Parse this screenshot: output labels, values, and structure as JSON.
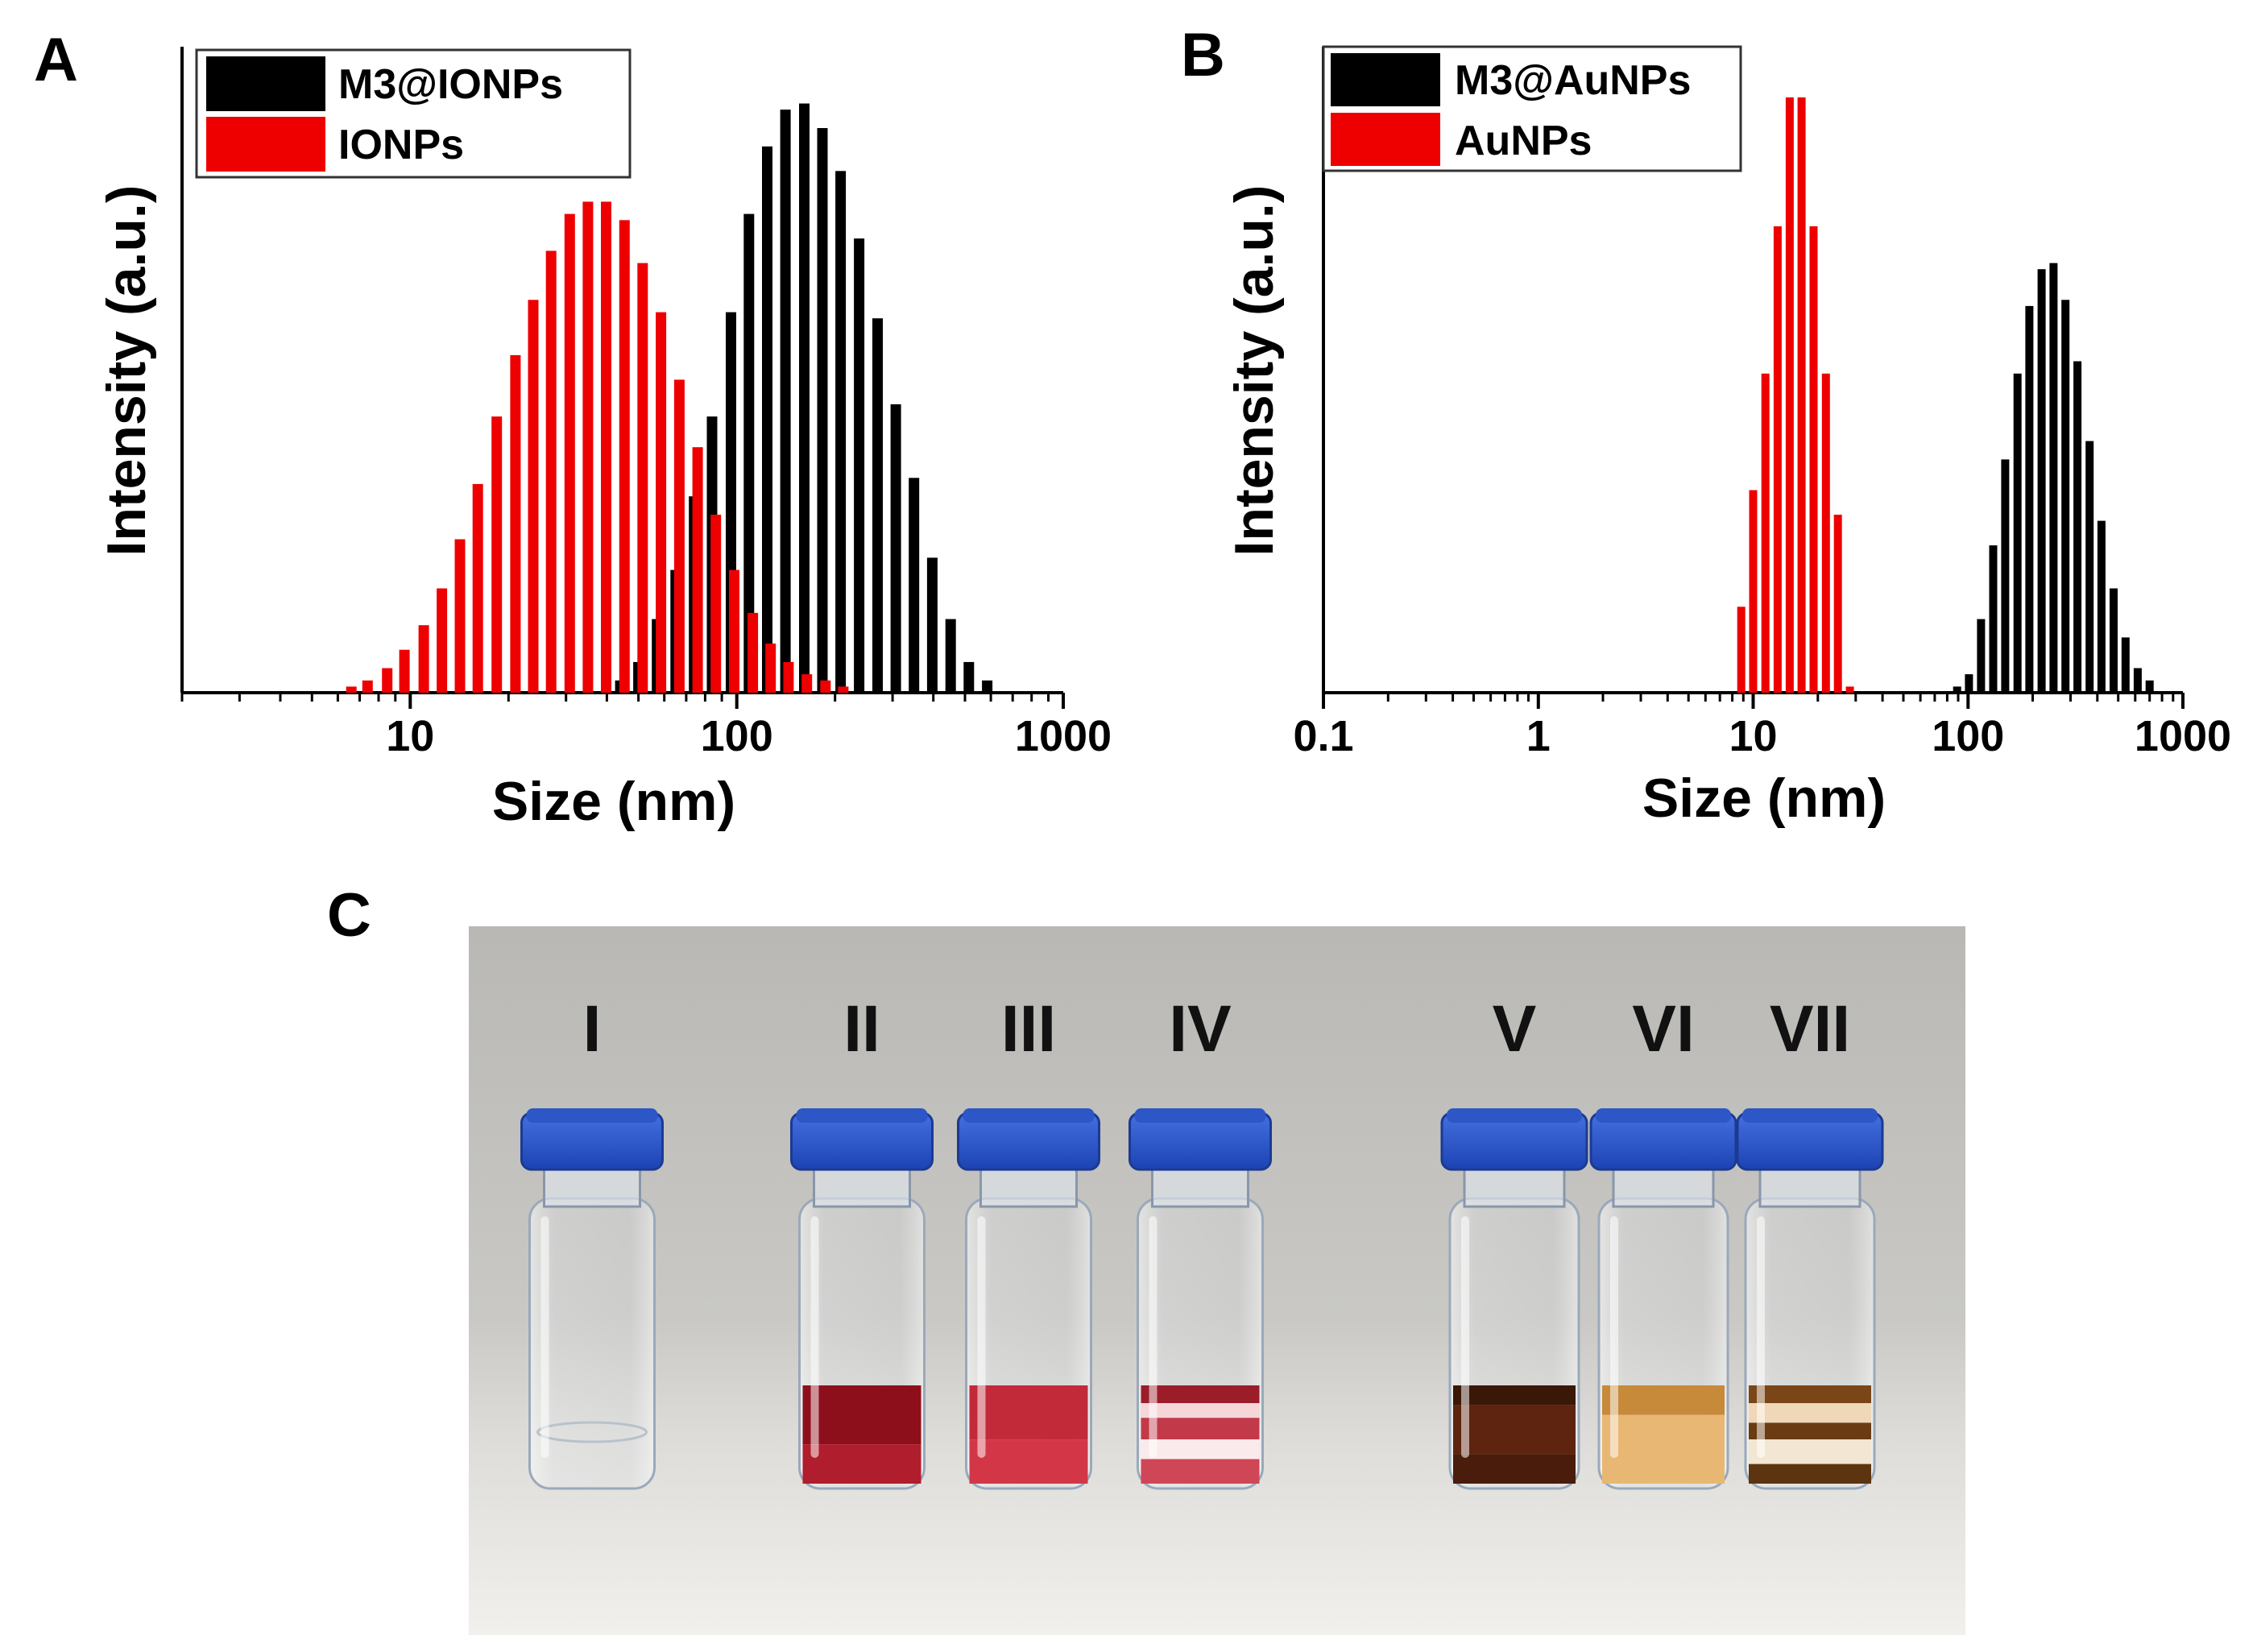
{
  "panels": {
    "a": "A",
    "b": "B",
    "c": "C"
  },
  "chart_data": [
    {
      "type": "bar",
      "panel": "A",
      "xscale": "log",
      "xlim": [
        2,
        1000
      ],
      "ylim": [
        0,
        1.0
      ],
      "xlabel": "Size (nm)",
      "ylabel": "Intensity (a.u.)",
      "xticks": [
        10,
        100,
        1000
      ],
      "xtick_labels": [
        "10",
        "100",
        "1000"
      ],
      "legend_position": "top-left",
      "series": [
        {
          "name": "M3@IONPs",
          "color": "#000000",
          "x": [
            44,
            50,
            57,
            65,
            74,
            84,
            96,
            109,
            124,
            141,
            161,
            183,
            208,
            237,
            270,
            307,
            349,
            397,
            452,
            514,
            585
          ],
          "values": [
            0.02,
            0.05,
            0.12,
            0.2,
            0.32,
            0.45,
            0.62,
            0.78,
            0.89,
            0.95,
            0.96,
            0.92,
            0.85,
            0.74,
            0.61,
            0.47,
            0.35,
            0.22,
            0.12,
            0.05,
            0.02
          ]
        },
        {
          "name": "IONPs",
          "color": "#ee0000",
          "x": [
            6.6,
            7.4,
            8.5,
            9.6,
            11,
            12.5,
            14.2,
            16.1,
            18.4,
            21,
            23.8,
            27,
            30.8,
            35,
            39.8,
            45.3,
            51.5,
            58.6,
            66.7,
            75.9,
            86.3,
            98.2,
            112,
            127,
            144,
            164,
            187,
            212
          ],
          "values": [
            0.01,
            0.02,
            0.04,
            0.07,
            0.11,
            0.17,
            0.25,
            0.34,
            0.45,
            0.55,
            0.64,
            0.72,
            0.78,
            0.8,
            0.8,
            0.77,
            0.7,
            0.62,
            0.51,
            0.4,
            0.29,
            0.2,
            0.13,
            0.08,
            0.05,
            0.03,
            0.02,
            0.01
          ]
        }
      ]
    },
    {
      "type": "bar",
      "panel": "B",
      "xscale": "log",
      "xlim": [
        0.1,
        1000
      ],
      "ylim": [
        0,
        1.0
      ],
      "xlabel": "Size (nm)",
      "ylabel": "Intensity (a.u.)",
      "xticks": [
        0.1,
        1,
        10,
        100,
        1000
      ],
      "xtick_labels": [
        "0.1",
        "1",
        "10",
        "100",
        "1000"
      ],
      "legend_position": "top-left",
      "series": [
        {
          "name": "M3@AuNPs",
          "color": "#000000",
          "x": [
            89,
            101,
            115,
            131,
            149,
            170,
            193,
            220,
            250,
            284,
            323,
            368,
            418,
            476,
            541,
            616,
            700
          ],
          "values": [
            0.01,
            0.03,
            0.12,
            0.24,
            0.38,
            0.52,
            0.63,
            0.69,
            0.7,
            0.64,
            0.54,
            0.41,
            0.28,
            0.17,
            0.09,
            0.04,
            0.02
          ]
        },
        {
          "name": "AuNPs",
          "color": "#ee0000",
          "x": [
            8.8,
            10,
            11.4,
            13,
            14.8,
            16.8,
            19.1,
            21.8,
            24.8,
            28.2
          ],
          "values": [
            0.14,
            0.33,
            0.52,
            0.76,
            0.97,
            0.97,
            0.76,
            0.52,
            0.29,
            0.01
          ]
        }
      ]
    }
  ],
  "photo": {
    "vial_labels": [
      "I",
      "II",
      "III",
      "IV",
      "V",
      "VI",
      "VII"
    ],
    "cap_color": "#2d56c6",
    "background_color": "#c9c8c4"
  }
}
